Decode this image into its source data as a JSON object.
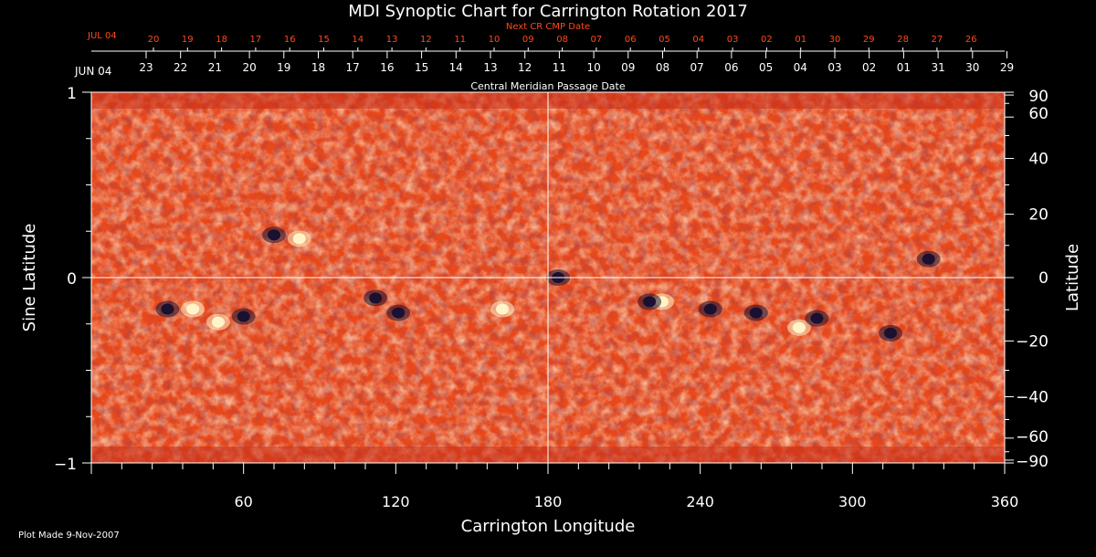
{
  "title": "MDI Synoptic Chart for Carrington Rotation 2017",
  "plot_made": "Plot Made  9-Nov-2007",
  "top_axis_red": {
    "label": "Next CR CMP Date",
    "month_label": "JUL 04",
    "ticks": [
      "20",
      "19",
      "18",
      "17",
      "16",
      "15",
      "14",
      "13",
      "12",
      "11",
      "10",
      "09",
      "08",
      "07",
      "06",
      "05",
      "04",
      "03",
      "02",
      "01",
      "30",
      "29",
      "28",
      "27",
      "26"
    ]
  },
  "top_axis_white": {
    "label": "Central Meridian Passage Date",
    "month_label": "JUN 04",
    "ticks": [
      "23",
      "22",
      "21",
      "20",
      "19",
      "18",
      "17",
      "16",
      "15",
      "14",
      "13",
      "12",
      "11",
      "10",
      "09",
      "08",
      "07",
      "06",
      "05",
      "04",
      "03",
      "02",
      "01",
      "31",
      "30",
      "29"
    ]
  },
  "colors": {
    "background": "#000000",
    "field_base": "#e8481a",
    "positive": "#fff4c8",
    "negative": "#1a1030",
    "red_axis": "#ff4a1a"
  },
  "chart_data": {
    "type": "heatmap",
    "title": "MDI Synoptic Chart for Carrington Rotation 2017",
    "xlabel": "Carrington Longitude",
    "ylabel_left": "Sine Latitude",
    "ylabel_right": "Latitude",
    "xlim": [
      0,
      360
    ],
    "ylim": [
      -1,
      1
    ],
    "x_ticks": [
      60,
      120,
      180,
      240,
      300,
      360
    ],
    "y_ticks_left": [
      {
        "value": 1,
        "label": "1"
      },
      {
        "value": 0,
        "label": "0"
      },
      {
        "value": -1,
        "label": "−1"
      }
    ],
    "y_ticks_right": [
      90,
      60,
      40,
      20,
      0,
      -20,
      -40,
      -60,
      -90
    ],
    "crosshair": {
      "longitude": 180,
      "sine_latitude": 0
    },
    "active_regions": [
      {
        "lon": 72,
        "sinlat": 0.23,
        "polarity": "negative"
      },
      {
        "lon": 82,
        "sinlat": 0.21,
        "polarity": "positive"
      },
      {
        "lon": 30,
        "sinlat": -0.17,
        "polarity": "negative"
      },
      {
        "lon": 40,
        "sinlat": -0.17,
        "polarity": "positive"
      },
      {
        "lon": 50,
        "sinlat": -0.24,
        "polarity": "positive"
      },
      {
        "lon": 60,
        "sinlat": -0.21,
        "polarity": "negative"
      },
      {
        "lon": 112,
        "sinlat": -0.11,
        "polarity": "negative"
      },
      {
        "lon": 121,
        "sinlat": -0.19,
        "polarity": "negative"
      },
      {
        "lon": 162,
        "sinlat": -0.17,
        "polarity": "positive"
      },
      {
        "lon": 184,
        "sinlat": 0.0,
        "polarity": "negative"
      },
      {
        "lon": 225,
        "sinlat": -0.13,
        "polarity": "positive"
      },
      {
        "lon": 220,
        "sinlat": -0.13,
        "polarity": "negative"
      },
      {
        "lon": 244,
        "sinlat": -0.17,
        "polarity": "negative"
      },
      {
        "lon": 262,
        "sinlat": -0.19,
        "polarity": "negative"
      },
      {
        "lon": 279,
        "sinlat": -0.27,
        "polarity": "positive"
      },
      {
        "lon": 286,
        "sinlat": -0.22,
        "polarity": "negative"
      },
      {
        "lon": 330,
        "sinlat": 0.1,
        "polarity": "negative"
      },
      {
        "lon": 315,
        "sinlat": -0.3,
        "polarity": "negative"
      }
    ]
  }
}
